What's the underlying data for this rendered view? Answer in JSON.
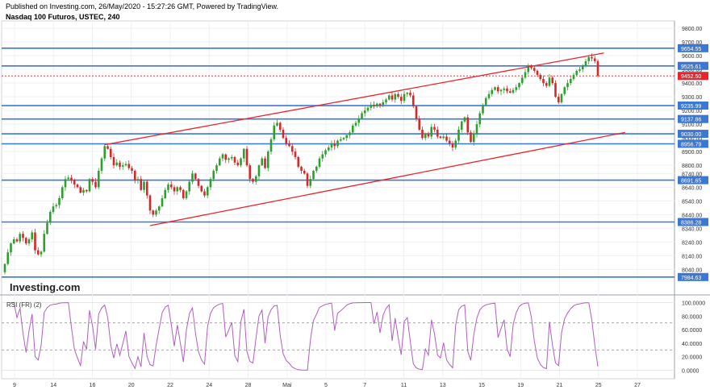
{
  "header": {
    "published": "Published on Investing.com, 26/May/2020 - 15:27:26 GMT, Powered by TradingView.",
    "symbol": "Nasdaq 100 Futuros, USTEC, 240"
  },
  "watermark": "Investing.com",
  "colors": {
    "up": "#2ca02c",
    "down": "#d62728",
    "level_line": "#3a78d6",
    "channel": "#e8252c",
    "rsi": "#b05fc0",
    "last_price_tag": "#e8252c"
  },
  "chart_data": [
    {
      "type": "candlestick",
      "name": "price",
      "x_tick_labels": [
        "9",
        "14",
        "16",
        "20",
        "22",
        "24",
        "28",
        "Mai",
        "5",
        "7",
        "11",
        "13",
        "15",
        "19",
        "21",
        "25",
        "27"
      ],
      "y_ticks": [
        8040,
        8140,
        8240,
        8340,
        8440,
        8540,
        8640,
        8740,
        8800,
        8900,
        9000,
        9100,
        9200,
        9300,
        9400,
        9500,
        9600,
        9700,
        9800
      ],
      "ylim": [
        7960,
        9830
      ],
      "horizontal_levels": [
        9654.55,
        9525.61,
        9235.99,
        9137.86,
        9030.0,
        8956.79,
        8691.65,
        8386.28,
        7984.63
      ],
      "last_price": 9452.5,
      "channel_upper": [
        {
          "bar": 33,
          "price": 8950
        },
        {
          "bar": 198,
          "price": 9620
        }
      ],
      "channel_lower": [
        {
          "bar": 48,
          "price": 8360
        },
        {
          "bar": 205,
          "price": 9040
        }
      ],
      "closes": [
        8080,
        8165,
        8230,
        8260,
        8245,
        8300,
        8270,
        8230,
        8260,
        8310,
        8180,
        8150,
        8170,
        8300,
        8380,
        8460,
        8500,
        8510,
        8560,
        8640,
        8700,
        8710,
        8690,
        8660,
        8640,
        8600,
        8620,
        8610,
        8700,
        8680,
        8640,
        8760,
        8850,
        8940,
        8920,
        8860,
        8800,
        8820,
        8790,
        8800,
        8810,
        8780,
        8760,
        8690,
        8700,
        8620,
        8680,
        8580,
        8470,
        8440,
        8470,
        8500,
        8560,
        8620,
        8660,
        8640,
        8610,
        8640,
        8620,
        8560,
        8610,
        8680,
        8740,
        8700,
        8650,
        8610,
        8580,
        8640,
        8700,
        8760,
        8800,
        8850,
        8880,
        8840,
        8850,
        8860,
        8820,
        8800,
        8850,
        8920,
        8800,
        8700,
        8680,
        8720,
        8800,
        8850,
        8780,
        8900,
        8990,
        9090,
        9110,
        9060,
        9000,
        8960,
        8940,
        8900,
        8860,
        8790,
        8760,
        8740,
        8650,
        8700,
        8760,
        8790,
        8850,
        8880,
        8910,
        8930,
        8960,
        8940,
        8980,
        8990,
        9000,
        9020,
        9040,
        9090,
        9110,
        9140,
        9180,
        9200,
        9220,
        9240,
        9230,
        9250,
        9240,
        9260,
        9280,
        9310,
        9280,
        9320,
        9300,
        9270,
        9320,
        9330,
        9310,
        9230,
        9140,
        9060,
        9000,
        9030,
        9010,
        9080,
        9060,
        9010,
        9000,
        9010,
        8980,
        8960,
        8930,
        8980,
        9060,
        9120,
        9150,
        9040,
        8970,
        9030,
        9100,
        9180,
        9240,
        9290,
        9320,
        9350,
        9370,
        9340,
        9350,
        9360,
        9340,
        9330,
        9350,
        9370,
        9400,
        9440,
        9480,
        9520,
        9510,
        9490,
        9460,
        9430,
        9400,
        9380,
        9440,
        9400,
        9300,
        9260,
        9320,
        9370,
        9400,
        9430,
        9460,
        9490,
        9500,
        9530,
        9560,
        9590,
        9580,
        9560,
        9452.5
      ]
    },
    {
      "type": "line",
      "name": "RSI (FR) (2)",
      "y_ticks": [
        0,
        20,
        40,
        60,
        80,
        100
      ],
      "ylim": [
        -3,
        103
      ],
      "reference_lines": [
        70,
        30
      ]
    }
  ]
}
